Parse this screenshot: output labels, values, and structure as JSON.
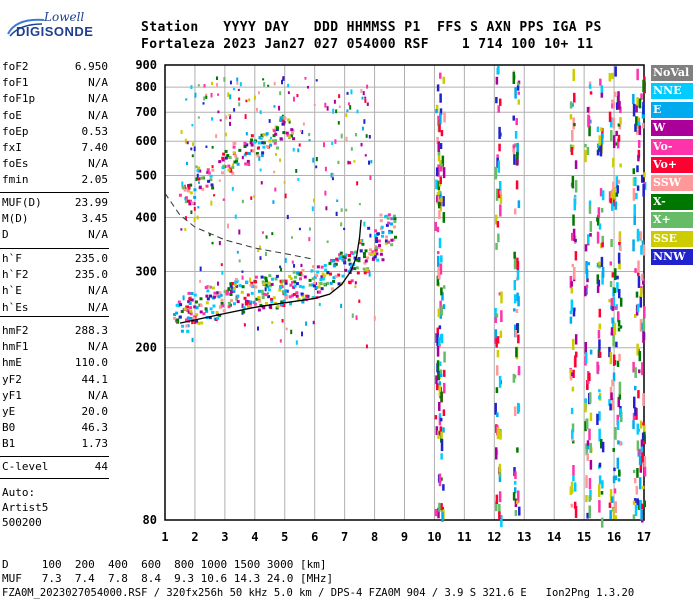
{
  "logo": {
    "line1": "Lowell",
    "line2": "DIGISONDE"
  },
  "header": {
    "labels": "Station   YYYY DAY   DDD HHMMSS P1  FFS S AXN PPS IGA PS",
    "values": "Fortaleza 2023 Jan27 027 054000 RSF    1 714 100 10+ 11"
  },
  "params_group1": [
    {
      "name": "foF2",
      "value": "6.950"
    },
    {
      "name": "foF1",
      "value": "N/A"
    },
    {
      "name": "foF1p",
      "value": "N/A"
    },
    {
      "name": "foE",
      "value": "N/A"
    },
    {
      "name": "foEp",
      "value": "0.53"
    },
    {
      "name": "fxI",
      "value": "7.40"
    },
    {
      "name": "foEs",
      "value": "N/A"
    },
    {
      "name": "fmin",
      "value": "2.05"
    }
  ],
  "params_group2": [
    {
      "name": "MUF(D)",
      "value": "23.99"
    },
    {
      "name": "M(D)",
      "value": "3.45"
    },
    {
      "name": "D",
      "value": "N/A"
    }
  ],
  "params_group3": [
    {
      "name": "h`F",
      "value": "235.0"
    },
    {
      "name": "h`F2",
      "value": "235.0"
    },
    {
      "name": "h`E",
      "value": "N/A"
    },
    {
      "name": "h`Es",
      "value": "N/A"
    }
  ],
  "params_group4": [
    {
      "name": "hmF2",
      "value": "288.3"
    },
    {
      "name": "hmF1",
      "value": "N/A"
    },
    {
      "name": "hmE",
      "value": "110.0"
    },
    {
      "name": "yF2",
      "value": "44.1"
    },
    {
      "name": "yF1",
      "value": "N/A"
    },
    {
      "name": "yE",
      "value": "20.0"
    },
    {
      "name": "B0",
      "value": "46.3"
    },
    {
      "name": "B1",
      "value": "1.73"
    }
  ],
  "params_group5": [
    {
      "name": "C-level",
      "value": "44"
    }
  ],
  "auto": {
    "line1": "Auto:",
    "line2": "Artist5",
    "line3": "500200"
  },
  "legend": [
    {
      "label": "NoVal",
      "bg": "#808080",
      "fg": "#ffffff"
    },
    {
      "label": "NNE",
      "bg": "#00ccff",
      "fg": "#ffffff"
    },
    {
      "label": "E",
      "bg": "#00aaee",
      "fg": "#ffffff"
    },
    {
      "label": "W",
      "bg": "#aa0099",
      "fg": "#ffffff"
    },
    {
      "label": "Vo-",
      "bg": "#ff33aa",
      "fg": "#ffffff"
    },
    {
      "label": "Vo+",
      "bg": "#ff0033",
      "fg": "#ffffff"
    },
    {
      "label": "SSW",
      "bg": "#ff9999",
      "fg": "#ffffff"
    },
    {
      "label": "X-",
      "bg": "#007700",
      "fg": "#ffffff"
    },
    {
      "label": "X+",
      "bg": "#66bb66",
      "fg": "#ffffff"
    },
    {
      "label": "SSE",
      "bg": "#cccc00",
      "fg": "#ffffff"
    },
    {
      "label": "NNW",
      "bg": "#2222cc",
      "fg": "#ffffff"
    }
  ],
  "chart_data": {
    "type": "scatter",
    "title": "",
    "xlabel": "",
    "ylabel": "",
    "xlim": [
      1,
      17
    ],
    "ylim": [
      80,
      900
    ],
    "x_ticks": [
      "1",
      "2",
      "3",
      "4",
      "5",
      "6",
      "7",
      "8",
      "9",
      "10",
      "11",
      "12",
      "13",
      "14",
      "15",
      "16",
      "17"
    ],
    "y_ticks": [
      "80",
      "200",
      "300",
      "400",
      "500",
      "600",
      "700",
      "800",
      "900"
    ],
    "y_scale": "log",
    "grid": true,
    "series": [
      {
        "description_note": "ordinary trace",
        "points": [
          [
            1.5,
            235
          ],
          [
            2,
            245
          ],
          [
            2.5,
            252
          ],
          [
            3,
            258
          ],
          [
            3.5,
            262
          ],
          [
            4,
            265
          ],
          [
            4.5,
            268
          ],
          [
            5,
            272
          ],
          [
            5.5,
            276
          ],
          [
            6,
            282
          ],
          [
            6.5,
            292
          ],
          [
            7,
            305
          ],
          [
            7.5,
            322
          ],
          [
            8,
            345
          ],
          [
            8.4,
            372
          ]
        ]
      },
      {
        "points": [
          [
            1.7,
            455
          ],
          [
            2.3,
            490
          ],
          [
            3,
            535
          ],
          [
            3.5,
            560
          ],
          [
            4,
            585
          ],
          [
            4.5,
            610
          ],
          [
            5,
            640
          ]
        ]
      }
    ],
    "profile_line": [
      [
        1.5,
        228
      ],
      [
        3,
        240
      ],
      [
        4,
        248
      ],
      [
        5,
        254
      ],
      [
        6,
        260
      ],
      [
        6.5,
        266
      ],
      [
        6.9,
        280
      ],
      [
        7.2,
        300
      ],
      [
        7.4,
        325
      ],
      [
        7.5,
        360
      ],
      [
        7.55,
        395
      ]
    ],
    "dashed_curve": [
      [
        1,
        455
      ],
      [
        1.5,
        405
      ],
      [
        2,
        380
      ],
      [
        3,
        355
      ],
      [
        4,
        340
      ],
      [
        5,
        330
      ],
      [
        6,
        320
      ]
    ]
  },
  "bottom": {
    "d_line": "D     100  200  400  600  800 1000 1500 3000 [km]",
    "muf_line": "MUF   7.3  7.4  7.8  8.4  9.3 10.6 14.3 24.0 [MHz]",
    "file_line": "FZA0M_2023027054000.RSF / 320fx256h 50 kHz 5.0 km / DPS-4 FZA0M 904 / 3.9 S 321.6 E   Ion2Png 1.3.20"
  }
}
